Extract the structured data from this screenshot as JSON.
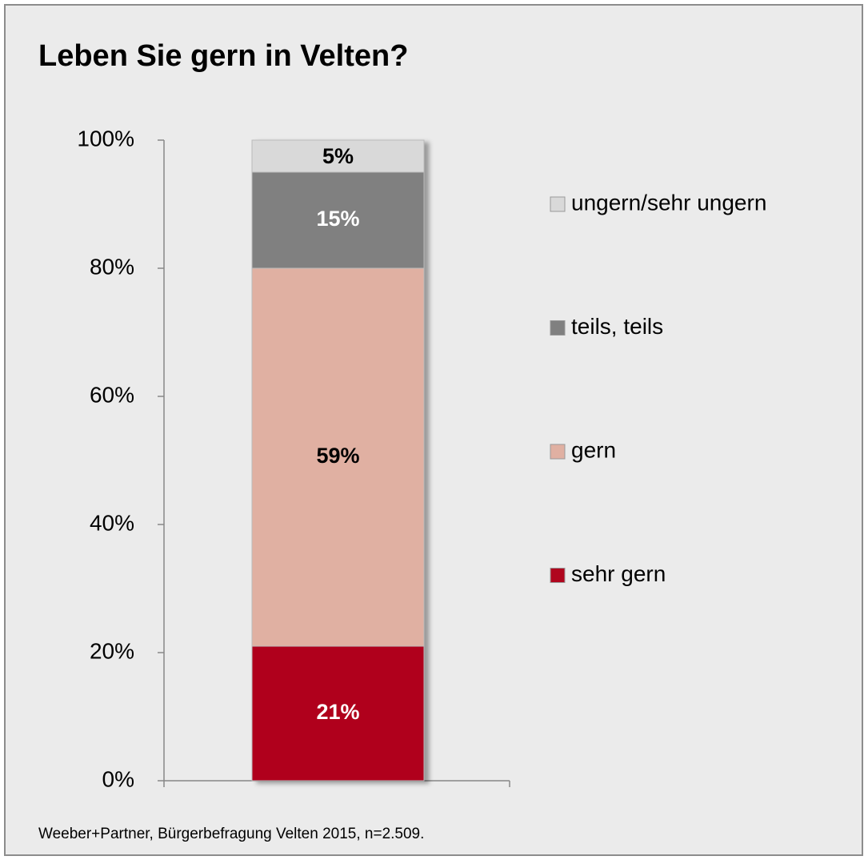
{
  "chart_data": {
    "type": "stacked_bar",
    "title": "Leben Sie gern in Velten?",
    "source": "Weeber+Partner, Bürgerbefragung Velten 2015,  n=2.509.",
    "categories": [
      null
    ],
    "series": [
      {
        "name": "sehr gern",
        "color": "#b0061e",
        "label_color": "#ffffff",
        "values": [
          21
        ],
        "value_labels": [
          "21%"
        ]
      },
      {
        "name": "gern",
        "color": "#e0b0a2",
        "label_color": "#000000",
        "values": [
          59
        ],
        "value_labels": [
          "59%"
        ]
      },
      {
        "name": "teils, teils",
        "color": "#808080",
        "label_color": "#ffffff",
        "values": [
          15
        ],
        "value_labels": [
          "15%"
        ]
      },
      {
        "name": "ungern/sehr ungern",
        "color": "#d9d9d9",
        "label_color": "#000000",
        "values": [
          5
        ],
        "value_labels": [
          "5%"
        ]
      }
    ],
    "ylim": [
      0,
      100
    ],
    "yticks": [
      {
        "value": 0,
        "label": "0%"
      },
      {
        "value": 20,
        "label": "20%"
      },
      {
        "value": 40,
        "label": "40%"
      },
      {
        "value": 60,
        "label": "60%"
      },
      {
        "value": 80,
        "label": "80%"
      },
      {
        "value": 100,
        "label": "100%"
      }
    ],
    "legend": "right"
  }
}
